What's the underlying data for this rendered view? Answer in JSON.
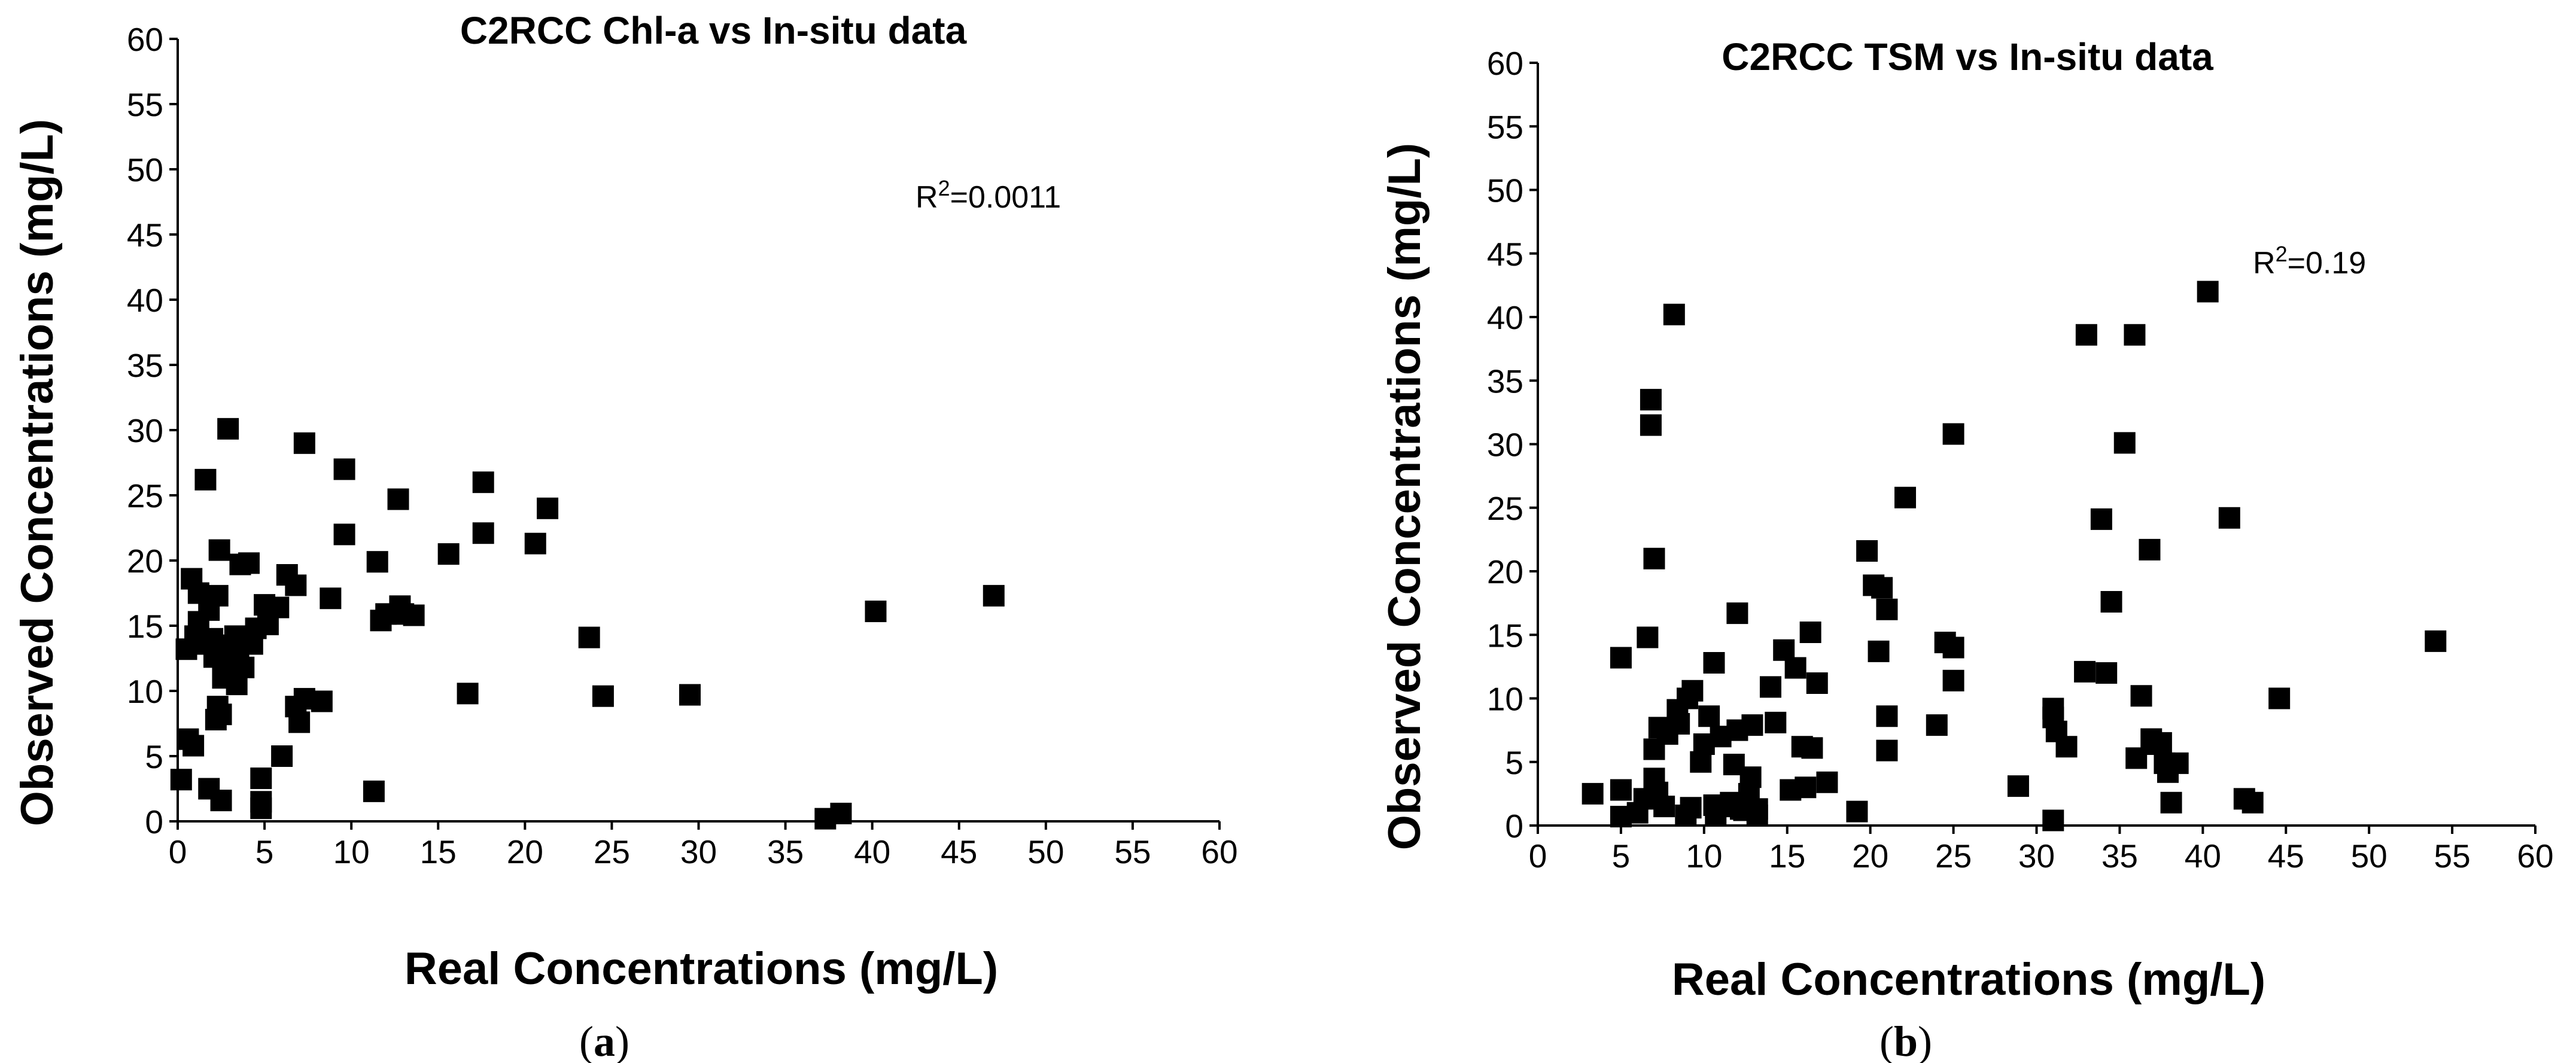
{
  "chart_data": [
    {
      "type": "scatter",
      "panel": "a",
      "title": "C2RCC Chl-a vs In-situ data",
      "xlabel": "Real Concentrations (mg/L)",
      "ylabel": "Observed Concentrations (mg/L)",
      "xlim": [
        0,
        60
      ],
      "ylim": [
        0,
        60
      ],
      "xticks": [
        "0",
        "5",
        "10",
        "15",
        "20",
        "25",
        "30",
        "35",
        "40",
        "45",
        "50",
        "55",
        "60"
      ],
      "yticks": [
        "0",
        "5",
        "10",
        "15",
        "20",
        "25",
        "30",
        "35",
        "40",
        "45",
        "50",
        "55",
        "60"
      ],
      "annotation": {
        "base": "R",
        "sup": "2",
        "value": "=0.0011"
      },
      "caption": {
        "open": "(",
        "letter": "a",
        "close": ")"
      },
      "marker": "square",
      "color": "#000000",
      "points": [
        [
          0.2,
          3.2
        ],
        [
          0.5,
          13.2
        ],
        [
          0.6,
          6.3
        ],
        [
          0.8,
          18.6
        ],
        [
          0.9,
          5.8
        ],
        [
          1.0,
          14.2
        ],
        [
          1.2,
          15.3
        ],
        [
          1.2,
          17.5
        ],
        [
          1.5,
          13.6
        ],
        [
          1.6,
          26.2
        ],
        [
          1.8,
          2.5
        ],
        [
          1.8,
          16.2
        ],
        [
          2.0,
          14.0
        ],
        [
          2.1,
          12.6
        ],
        [
          2.2,
          7.8
        ],
        [
          2.3,
          8.8
        ],
        [
          2.3,
          17.3
        ],
        [
          2.4,
          20.8
        ],
        [
          2.5,
          1.6
        ],
        [
          2.5,
          8.2
        ],
        [
          2.6,
          11.0
        ],
        [
          2.7,
          12.6
        ],
        [
          2.9,
          30.1
        ],
        [
          2.9,
          13.5
        ],
        [
          3.0,
          11.3
        ],
        [
          3.2,
          12.3
        ],
        [
          3.3,
          14.2
        ],
        [
          3.4,
          10.5
        ],
        [
          3.5,
          13.4
        ],
        [
          3.6,
          19.7
        ],
        [
          3.8,
          11.8
        ],
        [
          4.0,
          14.0
        ],
        [
          4.1,
          19.8
        ],
        [
          4.3,
          13.6
        ],
        [
          4.5,
          14.8
        ],
        [
          4.8,
          1.0
        ],
        [
          4.8,
          3.3
        ],
        [
          4.8,
          1.5
        ],
        [
          5.0,
          16.6
        ],
        [
          5.2,
          15.1
        ],
        [
          5.8,
          16.4
        ],
        [
          6.0,
          5.0
        ],
        [
          6.3,
          18.9
        ],
        [
          6.8,
          18.1
        ],
        [
          6.8,
          8.8
        ],
        [
          7.0,
          7.6
        ],
        [
          7.3,
          29.0
        ],
        [
          7.3,
          9.4
        ],
        [
          8.3,
          9.2
        ],
        [
          8.8,
          17.1
        ],
        [
          9.6,
          27.0
        ],
        [
          9.6,
          22.0
        ],
        [
          11.3,
          2.3
        ],
        [
          11.5,
          19.9
        ],
        [
          11.7,
          15.4
        ],
        [
          12.0,
          15.9
        ],
        [
          12.7,
          24.7
        ],
        [
          12.8,
          16.5
        ],
        [
          13.0,
          15.9
        ],
        [
          13.6,
          15.8
        ],
        [
          15.6,
          20.5
        ],
        [
          16.7,
          9.8
        ],
        [
          17.6,
          26.0
        ],
        [
          17.6,
          22.1
        ],
        [
          20.6,
          21.3
        ],
        [
          21.3,
          24.0
        ],
        [
          23.7,
          14.1
        ],
        [
          24.5,
          9.6
        ],
        [
          29.5,
          9.7
        ],
        [
          37.3,
          0.2
        ],
        [
          38.2,
          0.6
        ],
        [
          40.2,
          16.1
        ],
        [
          47.0,
          17.3
        ]
      ]
    },
    {
      "type": "scatter",
      "panel": "b",
      "title": "C2RCC TSM vs In-situ data",
      "xlabel": "Real Concentrations (mg/L)",
      "ylabel": "Observed Concentrations (mg/L)",
      "xlim": [
        0,
        60
      ],
      "ylim": [
        0,
        60
      ],
      "xticks": [
        "0",
        "5",
        "10",
        "15",
        "20",
        "25",
        "30",
        "35",
        "40",
        "45",
        "50",
        "55",
        "60"
      ],
      "yticks": [
        "0",
        "5",
        "10",
        "15",
        "20",
        "25",
        "30",
        "35",
        "40",
        "45",
        "50",
        "55",
        "60"
      ],
      "annotation": {
        "base": "R",
        "sup": "2",
        "value": "=0.19"
      },
      "caption": {
        "open": "(",
        "letter": "b",
        "close": ")"
      },
      "marker": "square",
      "color": "#000000",
      "points": [
        [
          3.3,
          2.5
        ],
        [
          5.0,
          13.2
        ],
        [
          5.0,
          0.7
        ],
        [
          5.0,
          2.8
        ],
        [
          6.0,
          1.0
        ],
        [
          6.4,
          2.1
        ],
        [
          6.6,
          14.8
        ],
        [
          6.8,
          33.5
        ],
        [
          6.8,
          31.5
        ],
        [
          7.0,
          21.0
        ],
        [
          7.0,
          3.7
        ],
        [
          7.0,
          6.0
        ],
        [
          7.2,
          2.6
        ],
        [
          7.3,
          7.7
        ],
        [
          7.6,
          1.5
        ],
        [
          7.8,
          7.2
        ],
        [
          8.2,
          40.2
        ],
        [
          8.4,
          9.1
        ],
        [
          8.5,
          8.0
        ],
        [
          8.9,
          0.8
        ],
        [
          9.0,
          10.0
        ],
        [
          9.2,
          1.4
        ],
        [
          9.3,
          10.6
        ],
        [
          9.8,
          5.0
        ],
        [
          10.0,
          6.4
        ],
        [
          10.3,
          8.6
        ],
        [
          10.6,
          12.8
        ],
        [
          10.6,
          1.6
        ],
        [
          10.7,
          0.9
        ],
        [
          11.0,
          7.0
        ],
        [
          11.3,
          1.5
        ],
        [
          11.6,
          1.8
        ],
        [
          11.8,
          4.8
        ],
        [
          12.0,
          16.7
        ],
        [
          12.0,
          7.5
        ],
        [
          12.2,
          1.3
        ],
        [
          12.4,
          1.2
        ],
        [
          12.7,
          2.5
        ],
        [
          12.8,
          3.8
        ],
        [
          12.9,
          7.9
        ],
        [
          13.2,
          0.8
        ],
        [
          13.2,
          1.3
        ],
        [
          14.0,
          10.9
        ],
        [
          14.3,
          8.1
        ],
        [
          14.8,
          13.8
        ],
        [
          15.2,
          2.8
        ],
        [
          15.5,
          12.4
        ],
        [
          15.9,
          6.2
        ],
        [
          16.1,
          3.0
        ],
        [
          16.4,
          15.2
        ],
        [
          16.5,
          6.1
        ],
        [
          16.8,
          11.2
        ],
        [
          17.4,
          3.4
        ],
        [
          19.2,
          1.1
        ],
        [
          19.8,
          21.6
        ],
        [
          20.2,
          18.9
        ],
        [
          20.7,
          18.7
        ],
        [
          20.5,
          13.7
        ],
        [
          21.0,
          17.0
        ],
        [
          21.0,
          8.6
        ],
        [
          21.0,
          5.9
        ],
        [
          22.1,
          25.8
        ],
        [
          24.0,
          7.9
        ],
        [
          24.5,
          14.4
        ],
        [
          25.0,
          14.0
        ],
        [
          25.0,
          30.8
        ],
        [
          25.0,
          11.4
        ],
        [
          28.9,
          3.1
        ],
        [
          31.0,
          0.4
        ],
        [
          31.0,
          9.2
        ],
        [
          31.0,
          8.5
        ],
        [
          31.2,
          7.4
        ],
        [
          31.8,
          6.2
        ],
        [
          32.9,
          12.1
        ],
        [
          33.0,
          38.6
        ],
        [
          33.9,
          24.1
        ],
        [
          34.2,
          12.0
        ],
        [
          34.5,
          17.6
        ],
        [
          35.3,
          30.1
        ],
        [
          35.9,
          38.6
        ],
        [
          36.0,
          5.3
        ],
        [
          36.3,
          10.2
        ],
        [
          36.8,
          21.7
        ],
        [
          36.9,
          6.8
        ],
        [
          37.2,
          6.4
        ],
        [
          37.5,
          6.5
        ],
        [
          37.7,
          4.9
        ],
        [
          37.9,
          4.2
        ],
        [
          38.1,
          1.8
        ],
        [
          38.5,
          4.9
        ],
        [
          40.3,
          42.0
        ],
        [
          41.6,
          24.2
        ],
        [
          42.5,
          2.1
        ],
        [
          43.0,
          1.8
        ],
        [
          44.6,
          10.0
        ],
        [
          54.0,
          14.5
        ]
      ]
    }
  ]
}
